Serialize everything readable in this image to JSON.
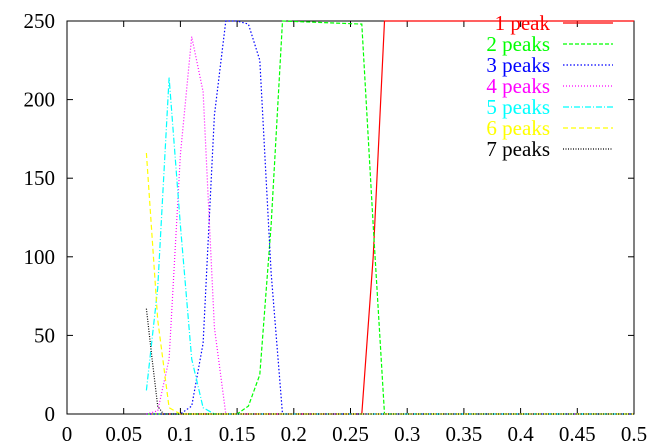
{
  "chart_data": {
    "type": "line",
    "title": "",
    "xlabel": "",
    "ylabel": "",
    "xlim": [
      0,
      0.5
    ],
    "ylim": [
      0,
      250
    ],
    "grid": false,
    "legend_position": "top-right",
    "xticks": [
      "0",
      "0.05",
      "0.1",
      "0.15",
      "0.2",
      "0.25",
      "0.3",
      "0.35",
      "0.4",
      "0.45",
      "0.5"
    ],
    "yticks": [
      "0",
      "50",
      "100",
      "150",
      "200",
      "250"
    ],
    "series": [
      {
        "name": "1 peak",
        "color": "#ff0000",
        "dash": "",
        "points": [
          [
            0.07,
            0
          ],
          [
            0.26,
            0
          ],
          [
            0.27,
            100
          ],
          [
            0.28,
            250
          ],
          [
            0.5,
            250
          ]
        ]
      },
      {
        "name": "2 peaks",
        "color": "#00ff00",
        "dash": "4,2",
        "points": [
          [
            0.07,
            0
          ],
          [
            0.15,
            0
          ],
          [
            0.16,
            5
          ],
          [
            0.17,
            25
          ],
          [
            0.18,
            120
          ],
          [
            0.19,
            250
          ],
          [
            0.26,
            248
          ],
          [
            0.27,
            120
          ],
          [
            0.28,
            0
          ],
          [
            0.5,
            0
          ]
        ]
      },
      {
        "name": "3 peaks",
        "color": "#0000ff",
        "dash": "1.5,2",
        "points": [
          [
            0.07,
            0
          ],
          [
            0.1,
            0
          ],
          [
            0.11,
            5
          ],
          [
            0.12,
            45
          ],
          [
            0.13,
            190
          ],
          [
            0.14,
            250
          ],
          [
            0.15,
            250
          ],
          [
            0.16,
            248
          ],
          [
            0.17,
            225
          ],
          [
            0.18,
            90
          ],
          [
            0.19,
            0
          ],
          [
            0.5,
            0
          ]
        ]
      },
      {
        "name": "4 peaks",
        "color": "#ff00ff",
        "dash": "1,2",
        "points": [
          [
            0.07,
            0
          ],
          [
            0.08,
            2
          ],
          [
            0.09,
            35
          ],
          [
            0.1,
            165
          ],
          [
            0.11,
            240
          ],
          [
            0.12,
            205
          ],
          [
            0.13,
            55
          ],
          [
            0.14,
            0
          ],
          [
            0.5,
            0
          ]
        ]
      },
      {
        "name": "5 peaks",
        "color": "#00ffff",
        "dash": "6,2,1,2",
        "points": [
          [
            0.07,
            15
          ],
          [
            0.08,
            80
          ],
          [
            0.09,
            214
          ],
          [
            0.1,
            120
          ],
          [
            0.11,
            35
          ],
          [
            0.12,
            4
          ],
          [
            0.13,
            0
          ],
          [
            0.5,
            0
          ]
        ]
      },
      {
        "name": "6 peaks",
        "color": "#ffff00",
        "dash": "5,3",
        "points": [
          [
            0.07,
            166
          ],
          [
            0.08,
            60
          ],
          [
            0.09,
            4
          ],
          [
            0.1,
            0
          ],
          [
            0.5,
            0
          ]
        ]
      },
      {
        "name": "7 peaks",
        "color": "#000000",
        "dash": "1,1.5",
        "points": [
          [
            0.07,
            67
          ],
          [
            0.075,
            35
          ],
          [
            0.08,
            5
          ],
          [
            0.085,
            0
          ],
          [
            0.5,
            0
          ]
        ]
      }
    ]
  }
}
